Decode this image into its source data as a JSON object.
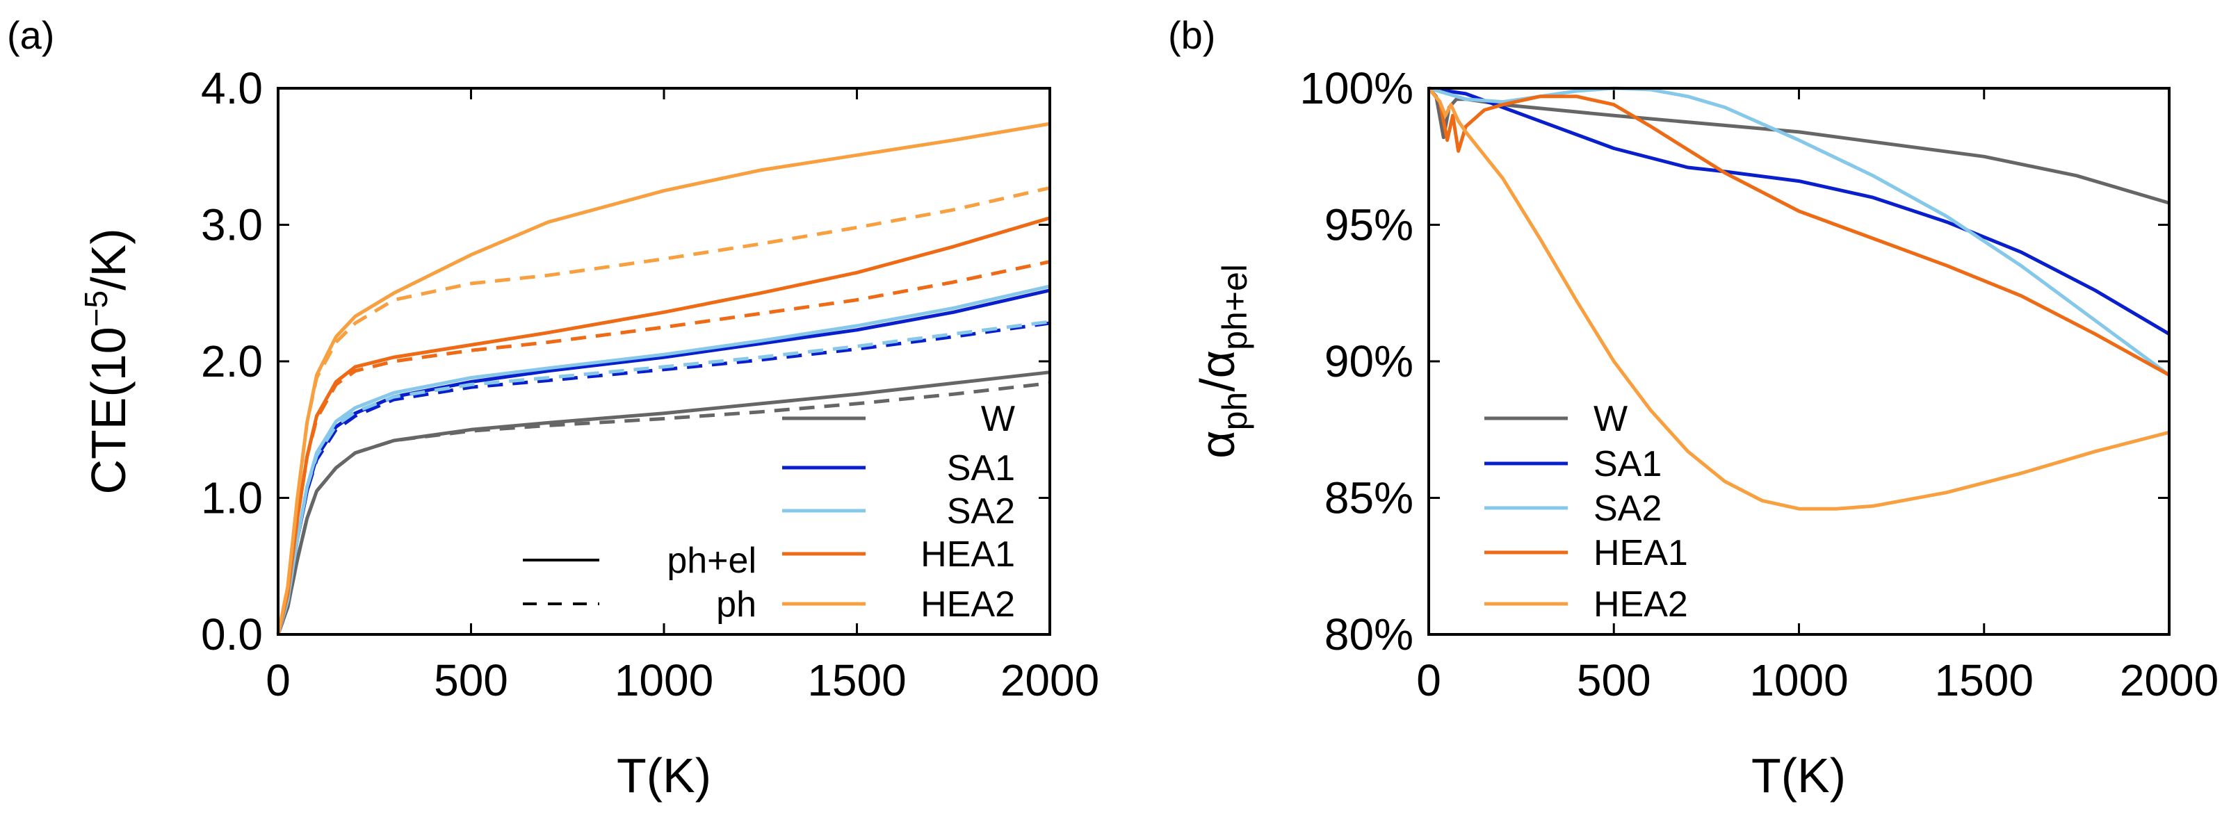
{
  "chart_data": [
    {
      "panel_label": "(a)",
      "type": "line",
      "xlabel": "T(K)",
      "ylabel": {
        "base": "CTE(10",
        "sup": "−5",
        "tail": "/K)"
      },
      "xlim": [
        0,
        2000
      ],
      "ylim": [
        0,
        4
      ],
      "xticks": [
        0,
        500,
        1000,
        1500,
        2000
      ],
      "xtick_labels": [
        "0",
        "500",
        "1000",
        "1500",
        "2000"
      ],
      "yticks": [
        0,
        1,
        2,
        3,
        4
      ],
      "ytick_labels": [
        "0.0",
        "1.0",
        "2.0",
        "3.0",
        "4.0"
      ],
      "style_legend": [
        {
          "label": "ph+el",
          "style": "solid"
        },
        {
          "label": "ph",
          "style": "dashed"
        }
      ],
      "series": [
        {
          "name": "W",
          "color": "#666666",
          "x": [
            0,
            25,
            50,
            75,
            100,
            150,
            200,
            300,
            500,
            700,
            1000,
            1250,
            1500,
            1750,
            2000
          ],
          "ph_el": [
            0,
            0.2,
            0.55,
            0.85,
            1.05,
            1.22,
            1.33,
            1.42,
            1.5,
            1.55,
            1.62,
            1.69,
            1.76,
            1.84,
            1.92
          ],
          "ph": [
            0,
            0.2,
            0.55,
            0.85,
            1.05,
            1.22,
            1.33,
            1.42,
            1.49,
            1.53,
            1.58,
            1.63,
            1.69,
            1.76,
            1.84
          ]
        },
        {
          "name": "SA1",
          "color": "#0a1fcc",
          "x": [
            0,
            25,
            50,
            75,
            100,
            150,
            200,
            300,
            500,
            700,
            1000,
            1250,
            1500,
            1750,
            2000
          ],
          "ph_el": [
            0,
            0.25,
            0.7,
            1.05,
            1.3,
            1.52,
            1.62,
            1.74,
            1.85,
            1.93,
            2.03,
            2.13,
            2.23,
            2.36,
            2.52
          ],
          "ph": [
            0,
            0.25,
            0.7,
            1.05,
            1.28,
            1.5,
            1.6,
            1.72,
            1.81,
            1.86,
            1.94,
            2.01,
            2.09,
            2.18,
            2.28
          ]
        },
        {
          "name": "SA2",
          "color": "#85c8ea",
          "x": [
            0,
            25,
            50,
            75,
            100,
            150,
            200,
            300,
            500,
            700,
            1000,
            1250,
            1500,
            1750,
            2000
          ],
          "ph_el": [
            0,
            0.25,
            0.7,
            1.08,
            1.33,
            1.56,
            1.66,
            1.77,
            1.88,
            1.95,
            2.05,
            2.15,
            2.26,
            2.39,
            2.55
          ],
          "ph": [
            0,
            0.25,
            0.7,
            1.08,
            1.31,
            1.53,
            1.63,
            1.74,
            1.83,
            1.88,
            1.96,
            2.03,
            2.11,
            2.2,
            2.29
          ]
        },
        {
          "name": "HEA1",
          "color": "#ee6a14",
          "x": [
            0,
            25,
            50,
            75,
            100,
            150,
            200,
            300,
            500,
            700,
            1000,
            1250,
            1500,
            1750,
            2000
          ],
          "ph_el": [
            0,
            0.3,
            0.85,
            1.3,
            1.6,
            1.85,
            1.96,
            2.03,
            2.12,
            2.21,
            2.36,
            2.5,
            2.65,
            2.84,
            3.05
          ],
          "ph": [
            0,
            0.3,
            0.85,
            1.3,
            1.58,
            1.83,
            1.93,
            2.0,
            2.08,
            2.14,
            2.25,
            2.35,
            2.45,
            2.58,
            2.73
          ]
        },
        {
          "name": "HEA2",
          "color": "#f8a040",
          "x": [
            0,
            25,
            50,
            75,
            100,
            150,
            200,
            300,
            500,
            700,
            1000,
            1250,
            1500,
            1750,
            2000
          ],
          "ph_el": [
            0,
            0.35,
            1.0,
            1.55,
            1.9,
            2.18,
            2.33,
            2.5,
            2.78,
            3.02,
            3.25,
            3.4,
            3.51,
            3.62,
            3.74
          ],
          "ph": [
            0,
            0.35,
            1.0,
            1.55,
            1.88,
            2.14,
            2.28,
            2.45,
            2.57,
            2.63,
            2.75,
            2.86,
            2.98,
            3.11,
            3.27
          ]
        }
      ]
    },
    {
      "panel_label": "(b)",
      "type": "line",
      "xlabel": "T(K)",
      "ylabel": {
        "a": "α",
        "sub1": "ph",
        "slash": "/α",
        "sub2": "ph+el"
      },
      "xlim": [
        0,
        2000
      ],
      "ylim": [
        80,
        100
      ],
      "xticks": [
        0,
        500,
        1000,
        1500,
        2000
      ],
      "xtick_labels": [
        "0",
        "500",
        "1000",
        "1500",
        "2000"
      ],
      "yticks": [
        80,
        85,
        90,
        95,
        100
      ],
      "ytick_labels": [
        "80%",
        "85%",
        "90%",
        "95%",
        "100%"
      ],
      "series": [
        {
          "name": "W",
          "color": "#666666",
          "x": [
            0,
            20,
            40,
            55,
            75,
            100,
            150,
            200,
            500,
            1000,
            1500,
            1750,
            2000
          ],
          "values": [
            100,
            99.7,
            98.2,
            99.3,
            99.6,
            99.6,
            99.5,
            99.4,
            99.0,
            98.4,
            97.5,
            96.8,
            95.8
          ]
        },
        {
          "name": "SA1",
          "color": "#0a1fcc",
          "x": [
            0,
            100,
            200,
            300,
            500,
            700,
            800,
            1000,
            1200,
            1400,
            1600,
            1800,
            2000
          ],
          "values": [
            100,
            99.8,
            99.3,
            98.8,
            97.8,
            97.1,
            96.95,
            96.6,
            96.0,
            95.1,
            94.0,
            92.6,
            91.0
          ]
        },
        {
          "name": "SA2",
          "color": "#85c8ea",
          "x": [
            0,
            50,
            100,
            200,
            300,
            400,
            500,
            600,
            700,
            800,
            1000,
            1200,
            1400,
            1600,
            1800,
            2000
          ],
          "values": [
            100,
            99.8,
            99.6,
            99.5,
            99.7,
            99.9,
            100,
            99.95,
            99.7,
            99.3,
            98.1,
            96.8,
            95.3,
            93.5,
            91.5,
            89.5
          ]
        },
        {
          "name": "HEA1",
          "color": "#ee6a14",
          "x": [
            0,
            30,
            50,
            65,
            80,
            100,
            150,
            200,
            300,
            400,
            500,
            600,
            800,
            1000,
            1200,
            1400,
            1600,
            1800,
            2000
          ],
          "values": [
            100,
            99.5,
            98.1,
            99.0,
            97.7,
            98.6,
            99.2,
            99.4,
            99.7,
            99.7,
            99.4,
            98.6,
            96.9,
            95.5,
            94.5,
            93.5,
            92.4,
            91.0,
            89.5
          ]
        },
        {
          "name": "HEA2",
          "color": "#f8a040",
          "x": [
            0,
            30,
            45,
            60,
            80,
            100,
            200,
            300,
            400,
            500,
            600,
            700,
            800,
            900,
            1000,
            1100,
            1200,
            1400,
            1600,
            1800,
            2000
          ],
          "values": [
            100,
            99.5,
            99.0,
            99.4,
            98.8,
            98.4,
            96.7,
            94.5,
            92.2,
            90.0,
            88.2,
            86.7,
            85.6,
            84.9,
            84.6,
            84.6,
            84.7,
            85.2,
            85.9,
            86.7,
            87.4
          ]
        }
      ]
    }
  ]
}
